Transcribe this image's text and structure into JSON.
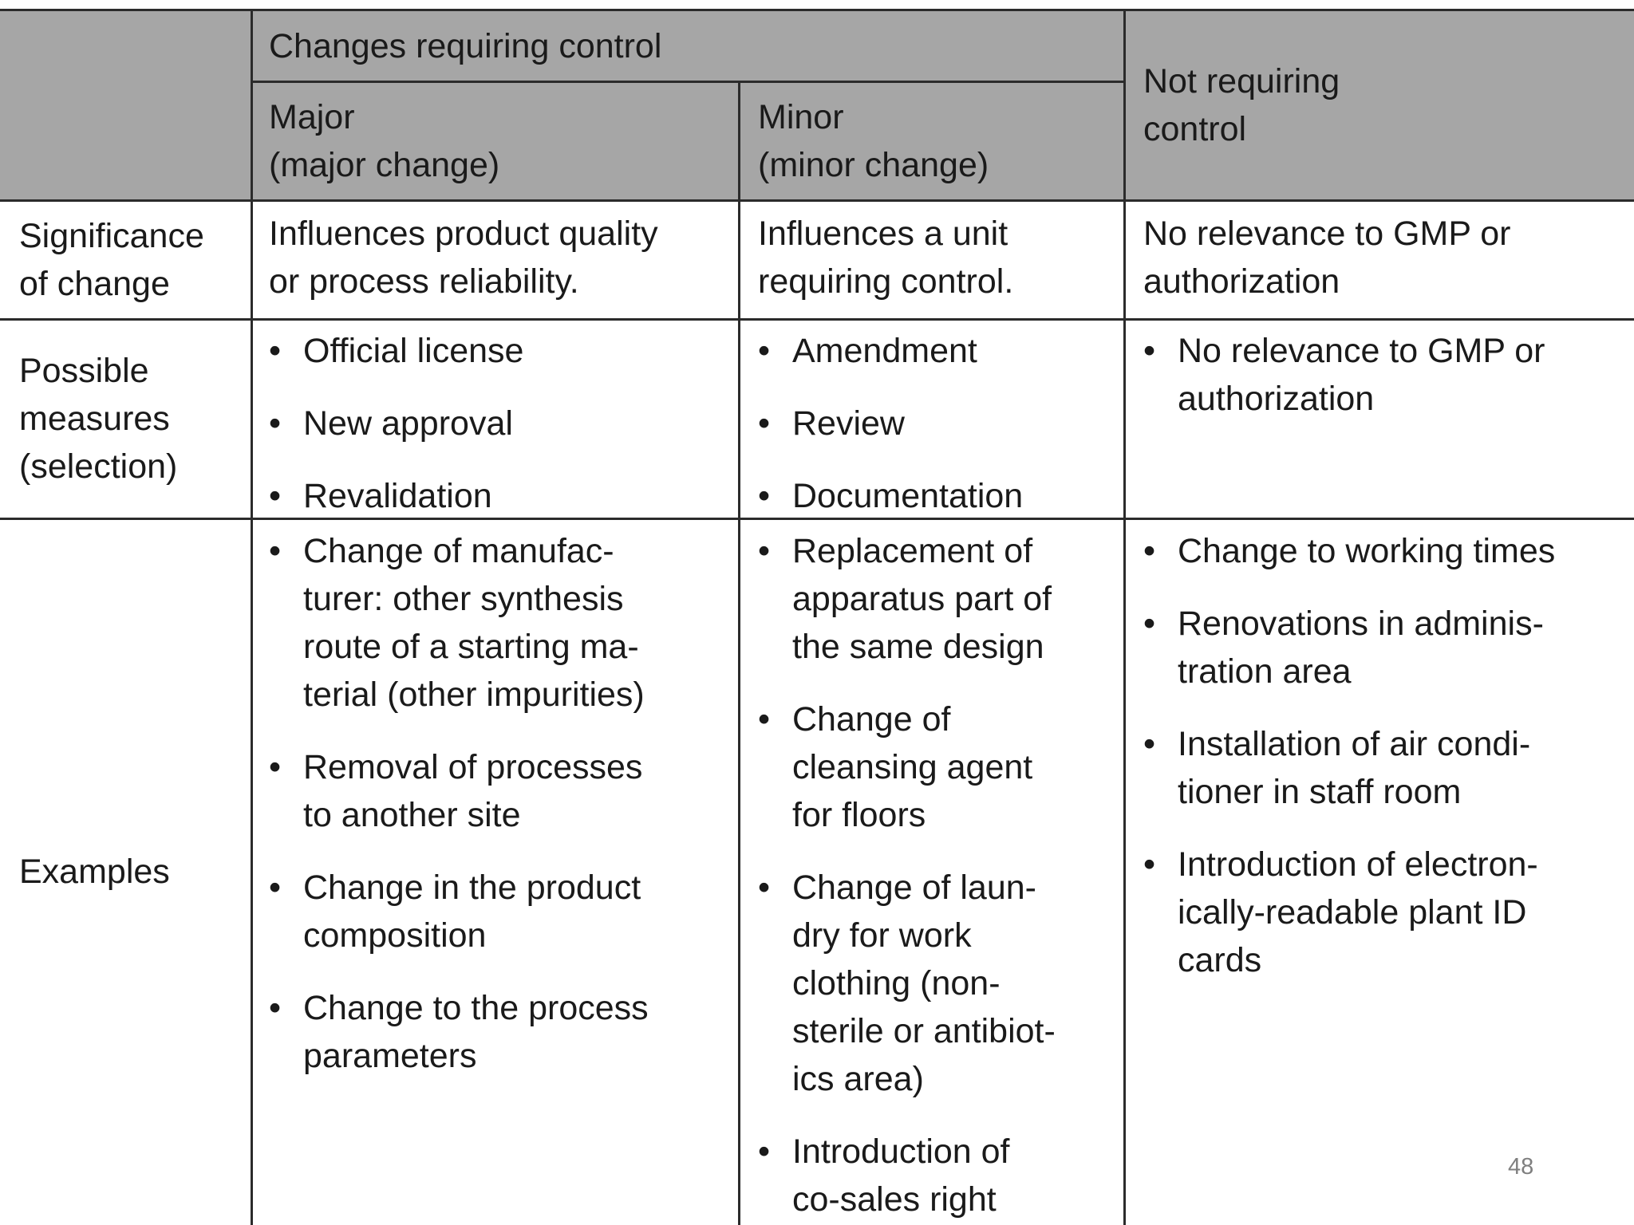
{
  "header": {
    "group": "Changes requiring control",
    "major": "Major\n(major change)",
    "minor": "Minor\n(minor change)",
    "none": "Not requiring\ncontrol"
  },
  "rows": [
    [
      "Significance\nof change",
      "Influences product quality\nor process reliability.",
      "Influences a unit\nrequiring control.",
      "No relevance to GMP or\nauthorization"
    ],
    [
      "Possible\nmeasures\n(selection)",
      [
        "Official license",
        "New approval",
        "Revalidation"
      ],
      [
        "Amendment",
        "Review",
        "Documentation"
      ],
      [
        "No relevance to GMP or\nauthorization"
      ]
    ],
    [
      "Examples",
      [
        "Change of manufac-\nturer: other synthesis\nroute of a starting ma-\nterial (other impurities)",
        "Removal of processes\nto another site",
        "Change in the product\ncomposition",
        "Change to the process\nparameters"
      ],
      [
        "Replacement of\napparatus part of\nthe same design",
        "Change of\ncleansing agent\nfor floors",
        "Change of laun-\ndry for work\nclothing (non-\nsterile or antibiot-\nics area)",
        "Introduction of\nco-sales right"
      ],
      [
        "Change to working times",
        "Renovations in adminis-\ntration area",
        "Installation of air condi-\ntioner in staff room",
        "Introduction of electron-\nically-readable plant ID\ncards"
      ]
    ]
  ],
  "page_number": "48"
}
